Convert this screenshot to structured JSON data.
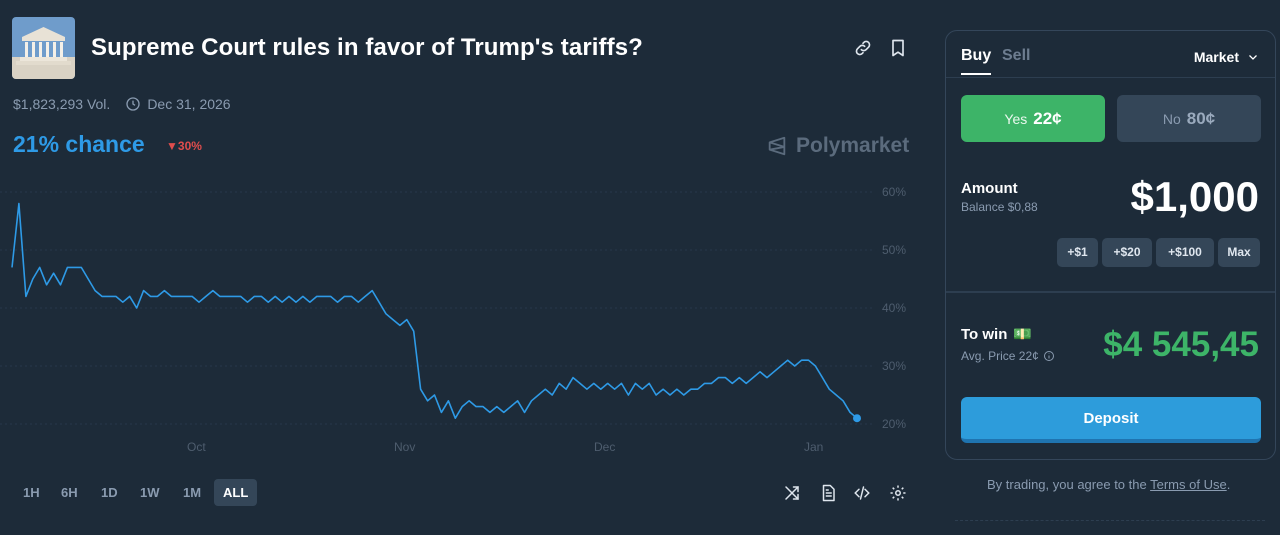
{
  "market": {
    "title": "Supreme Court rules in favor of Trump's tariffs?",
    "volume": "$1,823,293 Vol.",
    "end_date": "Dec 31, 2026",
    "chance": "21% chance",
    "change": "30%",
    "brand": "Polymarket"
  },
  "chart_data": {
    "type": "line",
    "y_ticks": [
      "60%",
      "50%",
      "40%",
      "30%",
      "20%"
    ],
    "x_ticks": [
      "Oct",
      "Nov",
      "Dec",
      "Jan"
    ],
    "ylim": [
      20,
      60
    ],
    "series": [
      {
        "name": "Yes",
        "values": [
          47,
          58,
          42,
          45,
          47,
          44,
          46,
          44,
          47,
          47,
          47,
          45,
          43,
          42,
          42,
          42,
          41,
          42,
          40,
          43,
          42,
          42,
          43,
          42,
          42,
          42,
          42,
          41,
          42,
          43,
          42,
          42,
          42,
          42,
          41,
          42,
          42,
          41,
          42,
          41,
          42,
          41,
          42,
          41,
          42,
          42,
          42,
          41,
          42,
          42,
          41,
          42,
          43,
          41,
          39,
          38,
          37,
          38,
          36,
          26,
          24,
          25,
          22,
          24,
          21,
          23,
          24,
          23,
          23,
          22,
          23,
          22,
          23,
          24,
          22,
          24,
          25,
          26,
          25,
          27,
          26,
          28,
          27,
          26,
          27,
          26,
          27,
          26,
          27,
          25,
          27,
          26,
          27,
          25,
          26,
          25,
          26,
          25,
          26,
          26,
          27,
          27,
          28,
          28,
          27,
          28,
          27,
          28,
          29,
          28,
          29,
          30,
          31,
          30,
          31,
          31,
          30,
          28,
          26,
          25,
          24,
          22,
          21
        ]
      }
    ]
  },
  "ranges": [
    "1H",
    "6H",
    "1D",
    "1W",
    "1M",
    "ALL"
  ],
  "active_range": "ALL",
  "trade": {
    "tab_buy": "Buy",
    "tab_sell": "Sell",
    "order_type": "Market",
    "yes_label": "Yes",
    "yes_price": "22¢",
    "no_label": "No",
    "no_price": "80¢",
    "amount_label": "Amount",
    "balance": "Balance $0,88",
    "amount_value": "$1,000",
    "chips": [
      "+$1",
      "+$20",
      "+$100",
      "Max"
    ],
    "towin_label": "To win",
    "towin_emoji": "💵",
    "avg_price": "Avg. Price 22¢",
    "towin_value": "$4 545,45",
    "deposit_label": "Deposit"
  },
  "footer": {
    "terms_prefix": "By trading, you agree to the",
    "terms_link": "Terms of Use",
    "terms_suffix": "."
  },
  "colors": {
    "accent": "#2e9ae6",
    "yes": "#3db468",
    "down": "#e04d4d",
    "background": "#1d2b39"
  }
}
